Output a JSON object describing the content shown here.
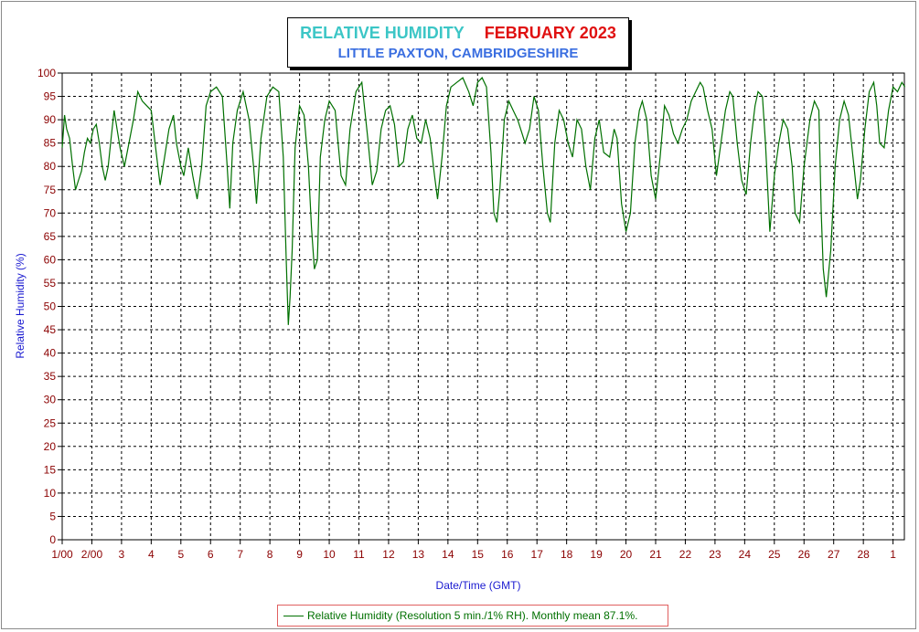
{
  "chart_data": {
    "type": "line",
    "title": "RELATIVE HUMIDITY",
    "title_period": "FEBRUARY 2023",
    "subtitle": "LITTLE PAXTON, CAMBRIDGESHIRE",
    "xlabel": "Date/Time (GMT)",
    "ylabel": "Relative Humidity (%)",
    "ylim": [
      0,
      100
    ],
    "xlim": [
      1,
      29.4
    ],
    "y_ticks": [
      0,
      5,
      10,
      15,
      20,
      25,
      30,
      35,
      40,
      45,
      50,
      55,
      60,
      65,
      70,
      75,
      80,
      85,
      90,
      95,
      100
    ],
    "x_ticks": [
      {
        "value": 1,
        "label": "1/00"
      },
      {
        "value": 2,
        "label": "2/00"
      },
      {
        "value": 3,
        "label": "3"
      },
      {
        "value": 4,
        "label": "4"
      },
      {
        "value": 5,
        "label": "5"
      },
      {
        "value": 6,
        "label": "6"
      },
      {
        "value": 7,
        "label": "7"
      },
      {
        "value": 8,
        "label": "8"
      },
      {
        "value": 9,
        "label": "9"
      },
      {
        "value": 10,
        "label": "10"
      },
      {
        "value": 11,
        "label": "11"
      },
      {
        "value": 12,
        "label": "12"
      },
      {
        "value": 13,
        "label": "13"
      },
      {
        "value": 14,
        "label": "14"
      },
      {
        "value": 15,
        "label": "15"
      },
      {
        "value": 16,
        "label": "16"
      },
      {
        "value": 17,
        "label": "17"
      },
      {
        "value": 18,
        "label": "18"
      },
      {
        "value": 19,
        "label": "19"
      },
      {
        "value": 20,
        "label": "20"
      },
      {
        "value": 21,
        "label": "21"
      },
      {
        "value": 22,
        "label": "22"
      },
      {
        "value": 23,
        "label": "23"
      },
      {
        "value": 24,
        "label": "24"
      },
      {
        "value": 25,
        "label": "25"
      },
      {
        "value": 26,
        "label": "26"
      },
      {
        "value": 27,
        "label": "27"
      },
      {
        "value": 28,
        "label": "28"
      },
      {
        "value": 29,
        "label": "1"
      }
    ],
    "grid": true,
    "legend_position": "bottom-center",
    "colors": {
      "line": "#007000",
      "title": "#3cc6c6",
      "period": "#e01010",
      "subtitle": "#3a6ee0",
      "axis_labels": "#1a1ad0",
      "tick_labels": "#8b0000",
      "legend_border": "#e06060"
    },
    "series": [
      {
        "name": "Relative Humidity (Resolution 5 min./1% RH). Monthly mean 87.1%.",
        "x": [
          1.0,
          1.08,
          1.15,
          1.25,
          1.35,
          1.45,
          1.55,
          1.65,
          1.75,
          1.85,
          1.95,
          2.05,
          2.15,
          2.25,
          2.35,
          2.45,
          2.55,
          2.65,
          2.75,
          2.85,
          2.95,
          3.1,
          3.25,
          3.4,
          3.55,
          3.7,
          3.85,
          4.0,
          4.15,
          4.3,
          4.45,
          4.6,
          4.75,
          4.85,
          5.0,
          5.1,
          5.25,
          5.4,
          5.55,
          5.7,
          5.85,
          6.0,
          6.2,
          6.4,
          6.55,
          6.65,
          6.75,
          6.9,
          7.1,
          7.3,
          7.45,
          7.55,
          7.7,
          7.9,
          8.1,
          8.3,
          8.45,
          8.55,
          8.62,
          8.68,
          8.75,
          8.85,
          9.0,
          9.15,
          9.3,
          9.4,
          9.5,
          9.6,
          9.7,
          9.85,
          10.0,
          10.2,
          10.4,
          10.55,
          10.7,
          10.9,
          11.1,
          11.3,
          11.45,
          11.6,
          11.75,
          11.9,
          12.05,
          12.2,
          12.35,
          12.5,
          12.65,
          12.8,
          12.95,
          13.1,
          13.25,
          13.4,
          13.55,
          13.65,
          13.8,
          13.95,
          14.1,
          14.3,
          14.5,
          14.7,
          14.85,
          15.0,
          15.15,
          15.3,
          15.45,
          15.55,
          15.65,
          15.75,
          15.9,
          16.05,
          16.2,
          16.35,
          16.5,
          16.6,
          16.75,
          16.9,
          17.05,
          17.2,
          17.35,
          17.45,
          17.6,
          17.75,
          17.9,
          18.05,
          18.2,
          18.35,
          18.5,
          18.65,
          18.8,
          18.95,
          19.1,
          19.25,
          19.45,
          19.6,
          19.7,
          19.85,
          20.0,
          20.15,
          20.3,
          20.45,
          20.55,
          20.7,
          20.85,
          21.0,
          21.15,
          21.3,
          21.45,
          21.6,
          21.75,
          21.9,
          22.05,
          22.2,
          22.35,
          22.5,
          22.6,
          22.75,
          22.9,
          23.05,
          23.2,
          23.35,
          23.5,
          23.6,
          23.75,
          23.9,
          24.05,
          24.2,
          24.35,
          24.45,
          24.6,
          24.7,
          24.85,
          25.0,
          25.15,
          25.3,
          25.45,
          25.6,
          25.7,
          25.85,
          26.0,
          26.2,
          26.35,
          26.5,
          26.58,
          26.65,
          26.75,
          26.9,
          27.05,
          27.2,
          27.35,
          27.5,
          27.65,
          27.8,
          27.9,
          28.05,
          28.2,
          28.35,
          28.45,
          28.55,
          28.7,
          28.85,
          29.0,
          29.15,
          29.3,
          29.4
        ],
        "values": [
          84,
          91,
          88,
          86,
          80,
          75,
          77,
          79,
          83,
          86,
          85,
          88,
          89,
          85,
          80,
          77,
          80,
          86,
          92,
          88,
          84,
          80,
          85,
          90,
          96,
          94,
          93,
          92,
          84,
          76,
          82,
          88,
          91,
          85,
          80,
          78,
          84,
          78,
          73,
          80,
          93,
          96,
          97,
          95,
          81,
          71,
          85,
          92,
          96,
          90,
          80,
          72,
          86,
          95,
          97,
          96,
          82,
          60,
          46,
          52,
          62,
          84,
          93,
          91,
          80,
          67,
          58,
          60,
          82,
          90,
          94,
          92,
          78,
          76,
          88,
          96,
          98,
          86,
          76,
          79,
          88,
          92,
          93,
          89,
          80,
          81,
          88,
          91,
          86,
          85,
          90,
          86,
          78,
          73,
          82,
          93,
          97,
          98,
          99,
          96,
          93,
          98,
          99,
          97,
          83,
          70,
          68,
          75,
          90,
          94,
          92,
          90,
          87,
          85,
          88,
          95,
          92,
          80,
          70,
          68,
          85,
          92,
          90,
          85,
          82,
          90,
          88,
          80,
          75,
          86,
          90,
          83,
          82,
          88,
          86,
          72,
          66,
          70,
          85,
          92,
          94,
          90,
          78,
          73,
          82,
          93,
          91,
          87,
          85,
          88,
          90,
          94,
          96,
          98,
          97,
          92,
          88,
          78,
          85,
          92,
          96,
          95,
          85,
          77,
          74,
          85,
          93,
          96,
          95,
          85,
          66,
          78,
          85,
          90,
          88,
          80,
          70,
          68,
          80,
          90,
          94,
          92,
          70,
          58,
          52,
          62,
          80,
          90,
          94,
          91,
          82,
          73,
          77,
          88,
          96,
          98,
          93,
          85,
          84,
          92,
          97,
          96,
          98,
          97
        ]
      }
    ]
  }
}
